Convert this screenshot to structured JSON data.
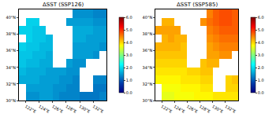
{
  "chart_data": [
    {
      "type": "heatmap",
      "title": "ΔSST (SSP126)",
      "color": "Jet",
      "grid": false,
      "x": [
        121.5,
        122.5,
        123.5,
        124.5,
        125.5,
        126.5,
        127.5,
        128.5,
        129.5,
        130.5,
        131.5,
        132.5,
        133.5
      ],
      "y": [
        30.5,
        31.5,
        32.5,
        33.5,
        34.5,
        35.5,
        36.5,
        37.5,
        38.5,
        39.5,
        40.5
      ],
      "z": [
        [
          null,
          1.4,
          1.4,
          1.5,
          1.5,
          1.4,
          1.3,
          1.3,
          1.3,
          1.2,
          1.2,
          1.2,
          1.3
        ],
        [
          null,
          1.5,
          1.5,
          1.5,
          1.5,
          1.4,
          1.4,
          1.3,
          1.3,
          null,
          null,
          1.2,
          1.2
        ],
        [
          1.6,
          1.6,
          1.6,
          1.5,
          1.5,
          1.5,
          1.4,
          1.4,
          1.3,
          null,
          null,
          1.3,
          1.3
        ],
        [
          1.7,
          1.6,
          1.6,
          1.6,
          1.5,
          1.5,
          1.5,
          1.4,
          1.4,
          null,
          null,
          null,
          null
        ],
        [
          1.8,
          1.7,
          1.7,
          1.6,
          1.6,
          null,
          null,
          1.5,
          1.4,
          1.4,
          null,
          null,
          null
        ],
        [
          1.8,
          1.8,
          1.7,
          1.7,
          1.6,
          null,
          null,
          null,
          1.5,
          1.5,
          1.5,
          1.4,
          null
        ],
        [
          1.9,
          1.8,
          1.8,
          1.7,
          1.7,
          null,
          null,
          null,
          1.5,
          1.5,
          1.5,
          1.5,
          1.4
        ],
        [
          null,
          1.9,
          1.8,
          1.8,
          1.7,
          null,
          null,
          null,
          1.6,
          1.6,
          1.5,
          1.5,
          1.5
        ],
        [
          1.9,
          1.9,
          1.8,
          1.8,
          null,
          null,
          null,
          null,
          1.6,
          1.6,
          1.6,
          1.5,
          1.5
        ],
        [
          null,
          1.9,
          1.9,
          null,
          null,
          null,
          null,
          1.5,
          1.5,
          1.5,
          1.5,
          1.4,
          1.4
        ],
        [
          null,
          null,
          null,
          null,
          null,
          null,
          null,
          null,
          1.4,
          1.4,
          1.4,
          1.3,
          1.3
        ]
      ],
      "xlim": [
        121,
        134
      ],
      "ylim": [
        30,
        41
      ],
      "xticks": [
        {
          "value": 122,
          "label": "122°E"
        },
        {
          "value": 124,
          "label": "124°E"
        },
        {
          "value": 126,
          "label": "126°E"
        },
        {
          "value": 128,
          "label": "128°E"
        },
        {
          "value": 130,
          "label": "130°E"
        },
        {
          "value": 132,
          "label": "132°E"
        }
      ],
      "yticks": [
        {
          "value": 30,
          "label": "30°N"
        },
        {
          "value": 32,
          "label": "32°N"
        },
        {
          "value": 34,
          "label": "34°N"
        },
        {
          "value": 36,
          "label": "36°N"
        },
        {
          "value": 38,
          "label": "38°N"
        },
        {
          "value": 40,
          "label": "40°N"
        }
      ],
      "colorbar": {
        "range": [
          0,
          6
        ],
        "ticks": [
          {
            "value": 0,
            "label": "0.0"
          },
          {
            "value": 1,
            "label": "1.0"
          },
          {
            "value": 2,
            "label": "2.0"
          },
          {
            "value": 3,
            "label": "3.0"
          },
          {
            "value": 4,
            "label": "4.0"
          },
          {
            "value": 5,
            "label": "5.0"
          },
          {
            "value": 6,
            "label": "6.0"
          }
        ]
      }
    },
    {
      "type": "heatmap",
      "title": "ΔSST (SSP585)",
      "color": "Jet",
      "grid": false,
      "x": [
        121.5,
        122.5,
        123.5,
        124.5,
        125.5,
        126.5,
        127.5,
        128.5,
        129.5,
        130.5,
        131.5,
        132.5,
        133.5
      ],
      "y": [
        30.5,
        31.5,
        32.5,
        33.5,
        34.5,
        35.5,
        36.5,
        37.5,
        38.5,
        39.5,
        40.5
      ],
      "z": [
        [
          null,
          3.6,
          3.6,
          3.7,
          3.7,
          3.7,
          3.8,
          3.8,
          3.8,
          3.9,
          3.9,
          3.9,
          3.9
        ],
        [
          null,
          3.7,
          3.7,
          3.7,
          3.8,
          3.8,
          3.8,
          3.9,
          3.9,
          null,
          null,
          4.0,
          4.0
        ],
        [
          3.8,
          3.8,
          3.8,
          3.8,
          3.9,
          3.9,
          3.9,
          4.0,
          4.0,
          null,
          null,
          4.0,
          4.1
        ],
        [
          3.9,
          3.9,
          3.9,
          3.9,
          3.9,
          4.0,
          4.0,
          4.1,
          4.1,
          null,
          null,
          null,
          null
        ],
        [
          4.0,
          4.0,
          4.0,
          4.0,
          4.0,
          null,
          null,
          4.1,
          4.2,
          4.2,
          null,
          null,
          null
        ],
        [
          4.1,
          4.1,
          4.1,
          4.1,
          4.1,
          null,
          null,
          null,
          4.3,
          4.3,
          4.4,
          4.4,
          null
        ],
        [
          4.2,
          4.2,
          4.2,
          4.2,
          4.1,
          null,
          null,
          null,
          4.3,
          4.4,
          4.5,
          4.5,
          4.5
        ],
        [
          null,
          4.2,
          4.3,
          4.2,
          4.2,
          null,
          null,
          null,
          4.4,
          4.5,
          4.6,
          4.6,
          4.6
        ],
        [
          4.3,
          4.3,
          4.3,
          4.3,
          null,
          null,
          null,
          null,
          4.5,
          4.6,
          4.7,
          4.7,
          4.7
        ],
        [
          null,
          4.2,
          4.2,
          null,
          null,
          null,
          null,
          4.4,
          4.6,
          4.7,
          4.8,
          4.8,
          4.7
        ],
        [
          null,
          null,
          null,
          null,
          null,
          null,
          null,
          null,
          4.5,
          4.7,
          4.8,
          4.8,
          4.7
        ]
      ],
      "xlim": [
        121,
        134
      ],
      "ylim": [
        30,
        41
      ],
      "xticks": [
        {
          "value": 122,
          "label": "122°E"
        },
        {
          "value": 124,
          "label": "124°E"
        },
        {
          "value": 126,
          "label": "126°E"
        },
        {
          "value": 128,
          "label": "128°E"
        },
        {
          "value": 130,
          "label": "130°E"
        },
        {
          "value": 132,
          "label": "132°E"
        }
      ],
      "yticks": [
        {
          "value": 30,
          "label": "30°N"
        },
        {
          "value": 32,
          "label": "32°N"
        },
        {
          "value": 34,
          "label": "34°N"
        },
        {
          "value": 36,
          "label": "36°N"
        },
        {
          "value": 38,
          "label": "38°N"
        },
        {
          "value": 40,
          "label": "40°N"
        }
      ],
      "colorbar": {
        "range": [
          0,
          6
        ],
        "ticks": [
          {
            "value": 0,
            "label": "0.0"
          },
          {
            "value": 1,
            "label": "1.0"
          },
          {
            "value": 2,
            "label": "2.0"
          },
          {
            "value": 3,
            "label": "3.0"
          },
          {
            "value": 4,
            "label": "4.0"
          },
          {
            "value": 5,
            "label": "5.0"
          },
          {
            "value": 6,
            "label": "6.0"
          }
        ]
      }
    }
  ]
}
